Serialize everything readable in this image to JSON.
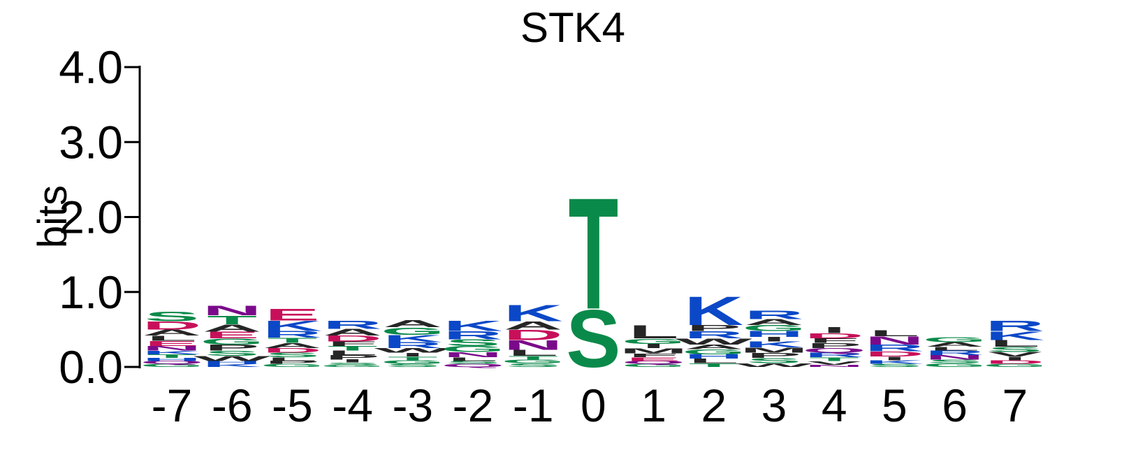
{
  "chart_data": {
    "type": "sequence-logo",
    "title": "STK4",
    "ylabel": "bits",
    "ylim": [
      0,
      4.0
    ],
    "yticks": [
      "0.0",
      "1.0",
      "2.0",
      "3.0",
      "4.0"
    ],
    "positions": [
      "-7",
      "-6",
      "-5",
      "-4",
      "-3",
      "-2",
      "-1",
      "0",
      "1",
      "2",
      "3",
      "4",
      "5",
      "6",
      "7"
    ],
    "residue_colors": {
      "acidic": "#c8105a",
      "basic": "#0b48c7",
      "polar": "#0a8a4a",
      "amide": "#7a0a8a",
      "hydrophobic": "#262626"
    },
    "stacks": [
      {
        "position": "-7",
        "letters": [
          {
            "aa": "G",
            "bits": 0.04
          },
          {
            "aa": "Q",
            "bits": 0.04
          },
          {
            "aa": "H",
            "bits": 0.04
          },
          {
            "aa": "T",
            "bits": 0.05
          },
          {
            "aa": "K",
            "bits": 0.05
          },
          {
            "aa": "N",
            "bits": 0.06
          },
          {
            "aa": "E",
            "bits": 0.07
          },
          {
            "aa": "L",
            "bits": 0.07
          },
          {
            "aa": "A",
            "bits": 0.08
          },
          {
            "aa": "D",
            "bits": 0.11
          },
          {
            "aa": "S",
            "bits": 0.13
          }
        ]
      },
      {
        "position": "-6",
        "letters": [
          {
            "aa": "K",
            "bits": 0.04
          },
          {
            "aa": "H",
            "bits": 0.04
          },
          {
            "aa": "W",
            "bits": 0.07
          },
          {
            "aa": "S",
            "bits": 0.07
          },
          {
            "aa": "P",
            "bits": 0.08
          },
          {
            "aa": "G",
            "bits": 0.08
          },
          {
            "aa": "E",
            "bits": 0.09
          },
          {
            "aa": "A",
            "bits": 0.1
          },
          {
            "aa": "T",
            "bits": 0.12
          },
          {
            "aa": "N",
            "bits": 0.13
          }
        ]
      },
      {
        "position": "-5",
        "letters": [
          {
            "aa": "G",
            "bits": 0.04
          },
          {
            "aa": "P",
            "bits": 0.04
          },
          {
            "aa": "L",
            "bits": 0.05
          },
          {
            "aa": "S",
            "bits": 0.06
          },
          {
            "aa": "D",
            "bits": 0.06
          },
          {
            "aa": "A",
            "bits": 0.07
          },
          {
            "aa": "T",
            "bits": 0.07
          },
          {
            "aa": "R",
            "bits": 0.09
          },
          {
            "aa": "K",
            "bits": 0.14
          },
          {
            "aa": "E",
            "bits": 0.16
          }
        ]
      },
      {
        "position": "-4",
        "letters": [
          {
            "aa": "G",
            "bits": 0.03
          },
          {
            "aa": "S",
            "bits": 0.03
          },
          {
            "aa": "I",
            "bits": 0.04
          },
          {
            "aa": "P",
            "bits": 0.06
          },
          {
            "aa": "L",
            "bits": 0.06
          },
          {
            "aa": "T",
            "bits": 0.06
          },
          {
            "aa": "F",
            "bits": 0.06
          },
          {
            "aa": "D",
            "bits": 0.08
          },
          {
            "aa": "A",
            "bits": 0.09
          },
          {
            "aa": "R",
            "bits": 0.11
          }
        ]
      },
      {
        "position": "-3",
        "letters": [
          {
            "aa": "S",
            "bits": 0.04
          },
          {
            "aa": "G",
            "bits": 0.05
          },
          {
            "aa": "T",
            "bits": 0.05
          },
          {
            "aa": "I",
            "bits": 0.05
          },
          {
            "aa": "W",
            "bits": 0.06
          },
          {
            "aa": "R",
            "bits": 0.08
          },
          {
            "aa": "K",
            "bits": 0.1
          },
          {
            "aa": "G",
            "bits": 0.1
          },
          {
            "aa": "A",
            "bits": 0.1
          }
        ]
      },
      {
        "position": "-2",
        "letters": [
          {
            "aa": "Q",
            "bits": 0.04
          },
          {
            "aa": "S",
            "bits": 0.04
          },
          {
            "aa": "L",
            "bits": 0.05
          },
          {
            "aa": "N",
            "bits": 0.07
          },
          {
            "aa": "G",
            "bits": 0.08
          },
          {
            "aa": "S",
            "bits": 0.09
          },
          {
            "aa": "R",
            "bits": 0.11
          },
          {
            "aa": "K",
            "bits": 0.14
          }
        ]
      },
      {
        "position": "-1",
        "letters": [
          {
            "aa": "S",
            "bits": 0.05
          },
          {
            "aa": "G",
            "bits": 0.05
          },
          {
            "aa": "T",
            "bits": 0.05
          },
          {
            "aa": "L",
            "bits": 0.08
          },
          {
            "aa": "N",
            "bits": 0.13
          },
          {
            "aa": "D",
            "bits": 0.14
          },
          {
            "aa": "A",
            "bits": 0.11
          },
          {
            "aa": "K",
            "bits": 0.22
          }
        ]
      },
      {
        "position": "0",
        "letters": [
          {
            "aa": "S",
            "bits": 0.78
          },
          {
            "aa": "T",
            "bits": 1.52
          }
        ]
      },
      {
        "position": "1",
        "letters": [
          {
            "aa": "G",
            "bits": 0.04
          },
          {
            "aa": "Q",
            "bits": 0.04
          },
          {
            "aa": "E",
            "bits": 0.05
          },
          {
            "aa": "F",
            "bits": 0.05
          },
          {
            "aa": "M",
            "bits": 0.07
          },
          {
            "aa": "I",
            "bits": 0.06
          },
          {
            "aa": "G",
            "bits": 0.07
          },
          {
            "aa": "L",
            "bits": 0.18
          }
        ]
      },
      {
        "position": "2",
        "letters": [
          {
            "aa": "T",
            "bits": 0.05
          },
          {
            "aa": "L",
            "bits": 0.06
          },
          {
            "aa": "H",
            "bits": 0.06
          },
          {
            "aa": "G",
            "bits": 0.07
          },
          {
            "aa": "A",
            "bits": 0.06
          },
          {
            "aa": "W",
            "bits": 0.08
          },
          {
            "aa": "R",
            "bits": 0.1
          },
          {
            "aa": "P",
            "bits": 0.08
          },
          {
            "aa": "K",
            "bits": 0.39
          }
        ]
      },
      {
        "position": "3",
        "letters": [
          {
            "aa": "W",
            "bits": 0.05
          },
          {
            "aa": "S",
            "bits": 0.07
          },
          {
            "aa": "P",
            "bits": 0.07
          },
          {
            "aa": "M",
            "bits": 0.07
          },
          {
            "aa": "K",
            "bits": 0.08
          },
          {
            "aa": "I",
            "bits": 0.06
          },
          {
            "aa": "H",
            "bits": 0.08
          },
          {
            "aa": "G",
            "bits": 0.08
          },
          {
            "aa": "A",
            "bits": 0.08
          },
          {
            "aa": "R",
            "bits": 0.12
          }
        ]
      },
      {
        "position": "4",
        "letters": [
          {
            "aa": "N",
            "bits": 0.03
          },
          {
            "aa": "V",
            "bits": 0.05
          },
          {
            "aa": "T",
            "bits": 0.05
          },
          {
            "aa": "R",
            "bits": 0.06
          },
          {
            "aa": "Q",
            "bits": 0.06
          },
          {
            "aa": "P",
            "bits": 0.07
          },
          {
            "aa": "F",
            "bits": 0.06
          },
          {
            "aa": "D",
            "bits": 0.07
          },
          {
            "aa": "I",
            "bits": 0.08
          }
        ]
      },
      {
        "position": "5",
        "letters": [
          {
            "aa": "S",
            "bits": 0.04
          },
          {
            "aa": "K",
            "bits": 0.05
          },
          {
            "aa": "I",
            "bits": 0.05
          },
          {
            "aa": "D",
            "bits": 0.07
          },
          {
            "aa": "R",
            "bits": 0.09
          },
          {
            "aa": "N",
            "bits": 0.11
          },
          {
            "aa": "L",
            "bits": 0.08
          }
        ]
      },
      {
        "position": "6",
        "letters": [
          {
            "aa": "G",
            "bits": 0.05
          },
          {
            "aa": "S",
            "bits": 0.05
          },
          {
            "aa": "N",
            "bits": 0.06
          },
          {
            "aa": "R",
            "bits": 0.06
          },
          {
            "aa": "L",
            "bits": 0.05
          },
          {
            "aa": "A",
            "bits": 0.06
          },
          {
            "aa": "G",
            "bits": 0.07
          }
        ]
      },
      {
        "position": "7",
        "letters": [
          {
            "aa": "G",
            "bits": 0.04
          },
          {
            "aa": "D",
            "bits": 0.05
          },
          {
            "aa": "I",
            "bits": 0.05
          },
          {
            "aa": "V",
            "bits": 0.06
          },
          {
            "aa": "S",
            "bits": 0.07
          },
          {
            "aa": "L",
            "bits": 0.09
          },
          {
            "aa": "K",
            "bits": 0.12
          },
          {
            "aa": "R",
            "bits": 0.14
          }
        ]
      }
    ],
    "residue_classes": {
      "D": "acidic",
      "E": "acidic",
      "K": "basic",
      "R": "basic",
      "H": "basic",
      "S": "polar",
      "T": "polar",
      "G": "polar",
      "Y": "polar",
      "C": "polar",
      "N": "amide",
      "Q": "amide",
      "A": "hydrophobic",
      "V": "hydrophobic",
      "L": "hydrophobic",
      "I": "hydrophobic",
      "P": "hydrophobic",
      "W": "hydrophobic",
      "F": "hydrophobic",
      "M": "hydrophobic"
    }
  }
}
